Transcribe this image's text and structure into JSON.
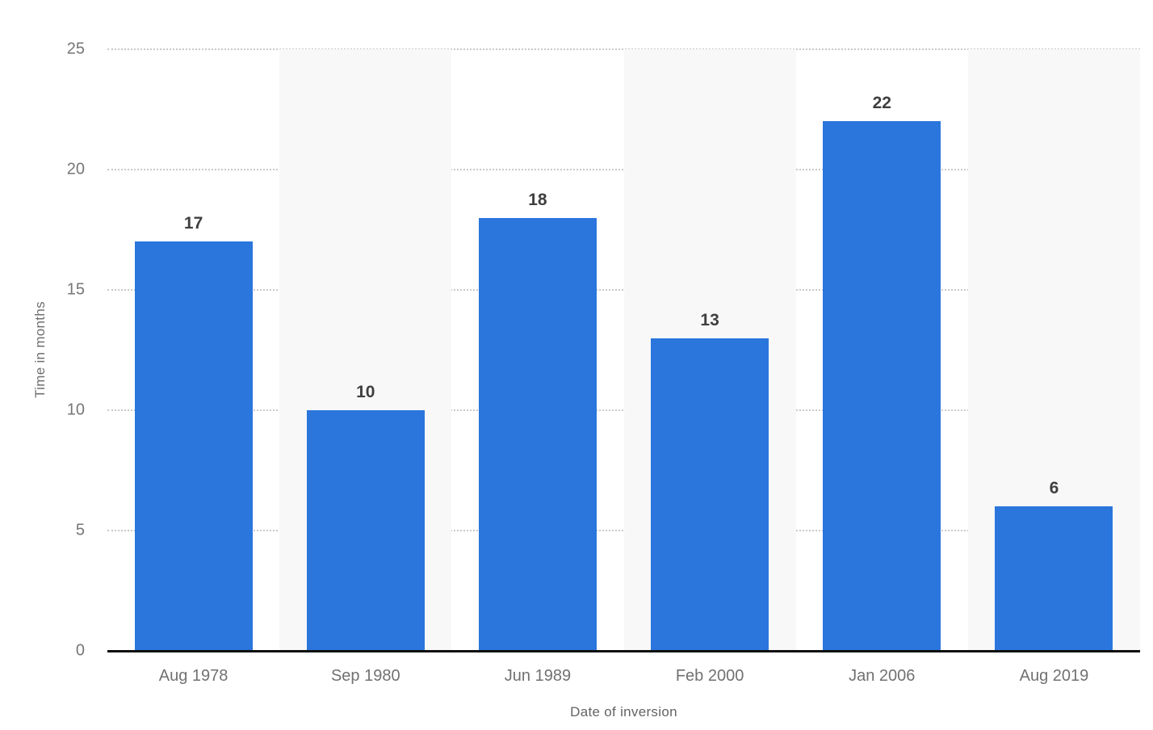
{
  "chart_data": {
    "type": "bar",
    "categories": [
      "Aug 1978",
      "Sep 1980",
      "Jun 1989",
      "Feb 2000",
      "Jan 2006",
      "Aug 2019"
    ],
    "values": [
      17,
      10,
      18,
      13,
      22,
      6
    ],
    "value_labels": [
      "17",
      "10",
      "18",
      "13",
      "22",
      "6"
    ],
    "title": "",
    "xlabel": "Date of inversion",
    "ylabel": "Time in months",
    "ylim": [
      0,
      25
    ],
    "yticks": [
      0,
      5,
      10,
      15,
      20,
      25
    ],
    "grid": "horizontal-dotted",
    "legend_position": "none",
    "bar_color": "#2a76dd",
    "stripe_color": "#f8f8f8",
    "axis_line_color": "#0d0d0d",
    "gridline_color": "#c9c9c9",
    "tick_label_color": "#767676",
    "value_label_color": "#3f3f3f",
    "background_color": "#ffffff"
  }
}
